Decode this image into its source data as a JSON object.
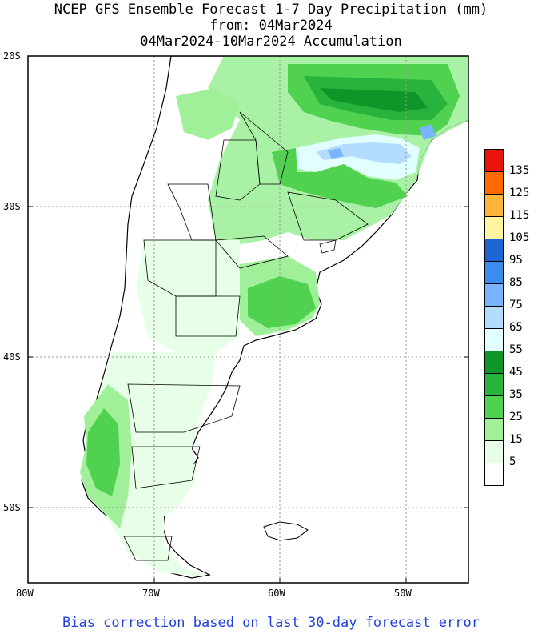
{
  "title": {
    "line1": "NCEP GFS Ensemble Forecast 1-7 Day Precipitation (mm)",
    "line2": "from: 04Mar2024",
    "line3": "04Mar2024-10Mar2024 Accumulation"
  },
  "axes": {
    "lat_labels": [
      "20S",
      "30S",
      "40S",
      "50S"
    ],
    "lon_labels": [
      "80W",
      "70W",
      "60W",
      "50W"
    ]
  },
  "legend": {
    "labels": [
      "135",
      "125",
      "115",
      "105",
      "95",
      "85",
      "75",
      "65",
      "55",
      "45",
      "35",
      "25",
      "15",
      "5"
    ],
    "colors": [
      "#e8140c",
      "#ff6a00",
      "#ffb43c",
      "#fff5a0",
      "#1e64d2",
      "#3c8cf0",
      "#78b4ff",
      "#b4dcff",
      "#e1ffff",
      "#0f9628",
      "#28b43c",
      "#50d250",
      "#a0f09a",
      "#e6ffe6",
      "#ffffff"
    ]
  },
  "footer": "Bias correction based on last 30-day forecast error"
}
